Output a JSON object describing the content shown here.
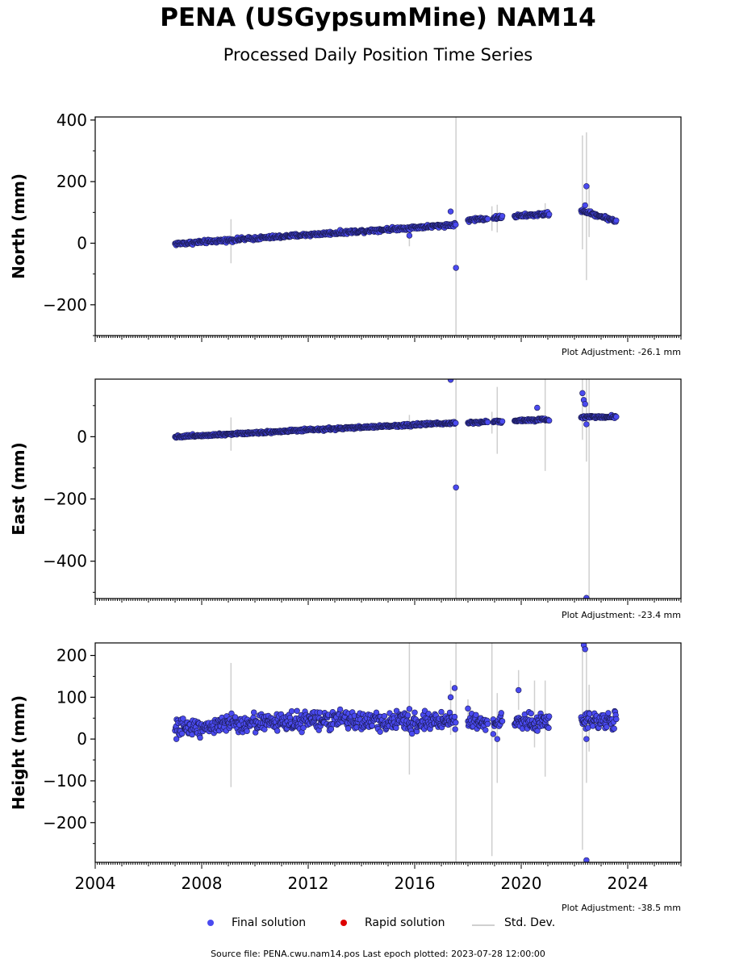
{
  "title": "PENA (USGypsumMine) NAM14",
  "subtitle": "Processed Daily Position Time Series",
  "footer": "Source file: PENA.cwu.nam14.pos  Last epoch plotted: 2023-07-28 12:00:00",
  "legend": {
    "final_label": "Final solution",
    "rapid_label": "Rapid solution",
    "stddev_label": "Std. Dev.",
    "final_color": "#4a4af0",
    "rapid_color": "#dd0000",
    "stddev_color": "#cfcfcf"
  },
  "chart_data": [
    {
      "type": "scatter",
      "ylabel": "North (mm)",
      "adjustment_label": "Plot Adjustment: -26.1 mm",
      "xlim": [
        2004,
        2026
      ],
      "ylim": [
        -300,
        410
      ],
      "yticks": [
        -200,
        0,
        200,
        400
      ],
      "ytick_labels": [
        "−200",
        "0",
        "200",
        "400"
      ],
      "show_xtick_labels": false,
      "trend": [
        [
          2007.0,
          -2
        ],
        [
          2017.5,
          60
        ],
        [
          2018.0,
          75
        ],
        [
          2019.3,
          85
        ],
        [
          2021.0,
          95
        ],
        [
          2022.3,
          105
        ],
        [
          2023.57,
          72
        ]
      ],
      "segments": [
        [
          2007.0,
          2017.55
        ],
        [
          2018.0,
          2018.75
        ],
        [
          2018.95,
          2019.3
        ],
        [
          2019.75,
          2021.05
        ],
        [
          2022.25,
          2023.57
        ]
      ],
      "noise": 4,
      "outliers": [
        [
          2015.8,
          25
        ],
        [
          2017.35,
          103
        ],
        [
          2017.55,
          -80
        ],
        [
          2022.45,
          185
        ],
        [
          2022.4,
          123
        ]
      ],
      "errorbars": [
        [
          2009.1,
          -65,
          78
        ],
        [
          2017.55,
          -310,
          420
        ],
        [
          2018.9,
          40,
          120
        ],
        [
          2019.1,
          35,
          125
        ],
        [
          2020.9,
          80,
          130
        ],
        [
          2022.3,
          -20,
          350
        ],
        [
          2022.45,
          -120,
          360
        ],
        [
          2022.55,
          20,
          190
        ],
        [
          2015.8,
          -10,
          55
        ]
      ]
    },
    {
      "type": "scatter",
      "ylabel": "East (mm)",
      "adjustment_label": "Plot Adjustment: -23.4 mm",
      "xlim": [
        2004,
        2026
      ],
      "ylim": [
        -520,
        185
      ],
      "yticks": [
        -400,
        -200,
        0
      ],
      "ytick_labels": [
        "−400",
        "−200",
        "0"
      ],
      "show_xtick_labels": false,
      "trend": [
        [
          2007.0,
          0
        ],
        [
          2017.5,
          45
        ],
        [
          2018.0,
          45
        ],
        [
          2019.3,
          50
        ],
        [
          2021.0,
          55
        ],
        [
          2022.3,
          63
        ],
        [
          2023.57,
          65
        ]
      ],
      "segments": [
        [
          2007.0,
          2017.55
        ],
        [
          2018.0,
          2018.75
        ],
        [
          2018.95,
          2019.3
        ],
        [
          2019.75,
          2021.05
        ],
        [
          2022.25,
          2023.57
        ]
      ],
      "noise": 3,
      "outliers": [
        [
          2017.35,
          183
        ],
        [
          2017.55,
          -163
        ],
        [
          2020.6,
          93
        ],
        [
          2022.3,
          140
        ],
        [
          2022.35,
          118
        ],
        [
          2022.4,
          105
        ],
        [
          2022.45,
          40
        ],
        [
          2022.45,
          -518
        ]
      ],
      "errorbars": [
        [
          2009.1,
          -45,
          62
        ],
        [
          2017.55,
          -520,
          185
        ],
        [
          2018.9,
          10,
          80
        ],
        [
          2019.1,
          -55,
          160
        ],
        [
          2020.9,
          -110,
          185
        ],
        [
          2022.3,
          -10,
          185
        ],
        [
          2022.45,
          -80,
          185
        ],
        [
          2022.55,
          -520,
          185
        ],
        [
          2015.8,
          20,
          70
        ]
      ]
    },
    {
      "type": "scatter",
      "ylabel": "Height (mm)",
      "adjustment_label": "Plot Adjustment: -38.5 mm",
      "xlim": [
        2004,
        2026
      ],
      "ylim": [
        -295,
        230
      ],
      "yticks": [
        -200,
        -100,
        0,
        100,
        200
      ],
      "ytick_labels": [
        "−200",
        "−100",
        "0",
        "100",
        "200"
      ],
      "show_xtick_labels": true,
      "xticks": [
        2004,
        2008,
        2012,
        2016,
        2020,
        2024
      ],
      "xtick_labels": [
        "2004",
        "2008",
        "2012",
        "2016",
        "2020",
        "2024"
      ],
      "trend": [
        [
          2007.0,
          25
        ],
        [
          2010.0,
          40
        ],
        [
          2013.0,
          45
        ],
        [
          2016.0,
          40
        ],
        [
          2017.5,
          45
        ],
        [
          2019.3,
          40
        ],
        [
          2021.0,
          40
        ],
        [
          2022.3,
          45
        ],
        [
          2023.57,
          45
        ]
      ],
      "segments": [
        [
          2007.0,
          2017.55
        ],
        [
          2018.0,
          2018.75
        ],
        [
          2018.95,
          2019.3
        ],
        [
          2019.75,
          2021.05
        ],
        [
          2022.25,
          2023.57
        ]
      ],
      "noise": 15,
      "outliers": [
        [
          2007.05,
          0
        ],
        [
          2015.8,
          72
        ],
        [
          2017.35,
          100
        ],
        [
          2017.5,
          122
        ],
        [
          2018.0,
          73
        ],
        [
          2018.95,
          12
        ],
        [
          2019.1,
          0
        ],
        [
          2019.9,
          117
        ],
        [
          2022.35,
          225
        ],
        [
          2022.4,
          215
        ],
        [
          2022.45,
          0
        ],
        [
          2022.45,
          -290
        ]
      ],
      "errorbars": [
        [
          2009.1,
          -115,
          182
        ],
        [
          2015.8,
          -85,
          230
        ],
        [
          2017.35,
          10,
          140
        ],
        [
          2017.55,
          -295,
          230
        ],
        [
          2018.0,
          40,
          95
        ],
        [
          2018.9,
          -280,
          230
        ],
        [
          2019.1,
          -105,
          110
        ],
        [
          2019.9,
          70,
          165
        ],
        [
          2020.5,
          -20,
          140
        ],
        [
          2020.9,
          -90,
          140
        ],
        [
          2022.3,
          -265,
          230
        ],
        [
          2022.45,
          -105,
          230
        ],
        [
          2022.55,
          -30,
          130
        ]
      ]
    }
  ]
}
